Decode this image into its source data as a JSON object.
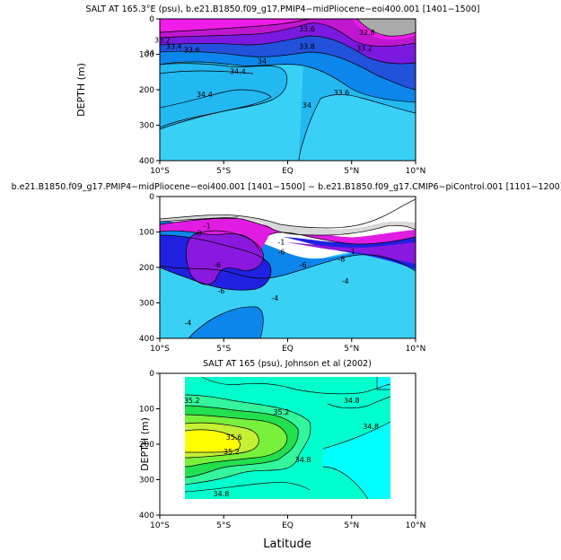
{
  "chart_data": [
    {
      "type": "contour",
      "title": "SALT AT 165.3°E (psu), b.e21.B1850.f09_g17.PMIP4−midPliocene−eoi400.001  [1401−1500]",
      "xlabel": "",
      "ylabel": "DEPTH (m)",
      "xlim": [
        -10,
        10
      ],
      "ylim": [
        400,
        0
      ],
      "x_ticks": [
        "10°S",
        "5°S",
        "EQ",
        "5°N",
        "10°N"
      ],
      "y_ticks": [
        "0",
        "100",
        "200",
        "300",
        "400"
      ],
      "y_tick_values": [
        0,
        100,
        200,
        300,
        400
      ],
      "x_tick_values": [
        -10,
        -5,
        0,
        5,
        10
      ],
      "levels": [
        33.2,
        33.4,
        33.6,
        33.8,
        34.0,
        34.2,
        34.4
      ],
      "contour_labels": [
        {
          "text": "33.6",
          "x": 1.5,
          "y": 30
        },
        {
          "text": "32.8",
          "x": 6.2,
          "y": 40
        },
        {
          "text": "33.2",
          "x": -9.8,
          "y": 62
        },
        {
          "text": "33.4",
          "x": -8.9,
          "y": 80
        },
        {
          "text": "33.6",
          "x": -7.5,
          "y": 90
        },
        {
          "text": "34",
          "x": -10.8,
          "y": 98
        },
        {
          "text": "33.8",
          "x": 1.5,
          "y": 80
        },
        {
          "text": "33.2",
          "x": 6.0,
          "y": 85
        },
        {
          "text": "34",
          "x": -2.0,
          "y": 122
        },
        {
          "text": "34.4",
          "x": -3.9,
          "y": 150
        },
        {
          "text": "34.4",
          "x": -6.5,
          "y": 215
        },
        {
          "text": "33.6",
          "x": 4.2,
          "y": 210
        },
        {
          "text": "34",
          "x": 1.5,
          "y": 245
        }
      ]
    },
    {
      "type": "contour",
      "title": "b.e21.B1850.f09_g17.PMIP4−midPliocene−eoi400.001 [1401−1500] − b.e21.B1850.f09_g17.CMIP6−piControl.001 [1101−1200]",
      "xlabel": "",
      "ylabel": "",
      "xlim": [
        -10,
        10
      ],
      "ylim": [
        400,
        0
      ],
      "x_ticks": [
        "10°S",
        "5°S",
        "EQ",
        "5°N",
        "10°N"
      ],
      "y_ticks": [
        "0",
        "100",
        "200",
        "300",
        "400"
      ],
      "y_tick_values": [
        0,
        100,
        200,
        300,
        400
      ],
      "x_tick_values": [
        -10,
        -5,
        0,
        5,
        10
      ],
      "levels": [
        -1,
        -0.8,
        -0.6,
        -0.4
      ],
      "contour_labels": [
        {
          "text": "-1",
          "x": -6.3,
          "y": 85
        },
        {
          "text": "-8",
          "x": -7.0,
          "y": 105
        },
        {
          "text": "-1",
          "x": -0.5,
          "y": 130
        },
        {
          "text": "-6",
          "x": -0.5,
          "y": 158
        },
        {
          "text": "-1",
          "x": 5.0,
          "y": 157
        },
        {
          "text": "-8",
          "x": 4.2,
          "y": 178
        },
        {
          "text": "-6",
          "x": -5.5,
          "y": 195
        },
        {
          "text": "-6",
          "x": 1.2,
          "y": 195
        },
        {
          "text": "-4",
          "x": 4.5,
          "y": 240
        },
        {
          "text": "-6",
          "x": -5.2,
          "y": 268
        },
        {
          "text": "-4",
          "x": -1.0,
          "y": 288
        },
        {
          "text": "-4",
          "x": -7.8,
          "y": 358
        }
      ]
    },
    {
      "type": "contour",
      "title": "SALT AT 165 (psu), Johnson et al (2002)",
      "xlabel": "Latitude",
      "ylabel": "DEPTH (m)",
      "xlim": [
        -10,
        10
      ],
      "ylim": [
        400,
        0
      ],
      "x_ticks": [
        "10°S",
        "5°S",
        "EQ",
        "5°N",
        "10°N"
      ],
      "y_ticks": [
        "0",
        "100",
        "200",
        "300",
        "400"
      ],
      "y_tick_values": [
        0,
        100,
        200,
        300,
        400
      ],
      "x_tick_values": [
        -10,
        -5,
        0,
        5,
        10
      ],
      "data_x_range": [
        -8,
        8
      ],
      "levels": [
        34.8,
        35.0,
        35.2,
        35.4,
        35.6
      ],
      "contour_labels": [
        {
          "text": "35.2",
          "x": -7.5,
          "y": 78
        },
        {
          "text": "34.8",
          "x": 5.0,
          "y": 78
        },
        {
          "text": "35.2",
          "x": -0.5,
          "y": 112
        },
        {
          "text": "35.6",
          "x": -4.2,
          "y": 182
        },
        {
          "text": "34.8",
          "x": 6.5,
          "y": 152
        },
        {
          "text": "35.2",
          "x": -4.4,
          "y": 223
        },
        {
          "text": "34.8",
          "x": 1.2,
          "y": 245
        },
        {
          "text": "34.8",
          "x": -5.2,
          "y": 342
        }
      ]
    }
  ],
  "colors": {
    "p1_bands": [
      "#39d0f6",
      "#22b8f0",
      "#0c86ec",
      "#2251dc",
      "#7b19e1",
      "#c116cf",
      "#f01ce9",
      "#aaaaaa"
    ],
    "p1_low": "#3af2d2",
    "p2_bands": [
      "#39d0f6",
      "#0c86ec",
      "#2020e0",
      "#8b18df",
      "#e01ce3",
      "#d8d8d8",
      "#6e6e6e"
    ],
    "p3_bands": [
      "#00ffff",
      "#00ffcc",
      "#33f59b",
      "#22e04e",
      "#78f03c",
      "#c5f034",
      "#ffff00"
    ]
  }
}
